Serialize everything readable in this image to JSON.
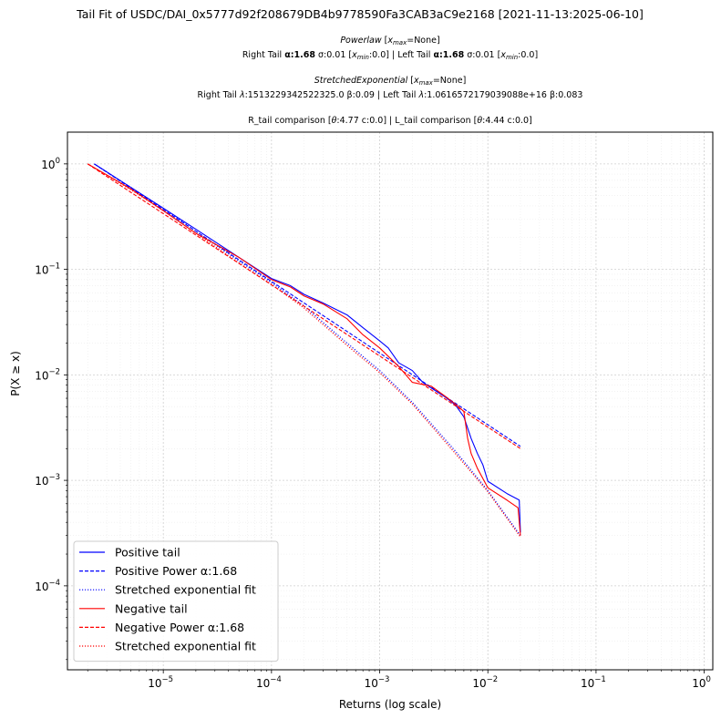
{
  "chart_data": {
    "type": "line",
    "title": "Tail Fit of USDC/DAI_0x5777d92f208679DB4b9778590Fa3CAB3aC9e2168 [2021-11-13:2025-06-10]",
    "subtitle_lines": [
      "Powerlaw [x_max=None]",
      "Right Tail α:1.68 σ:0.01 [x_min:0.0] | Left Tail α:1.68 σ:0.01 [x_min:0.0]",
      "StretchedExponential [x_max=None]",
      "Right Tail λ:1513229342522325.0 β:0.09 | Left Tail λ:1.0616572179039088e+16 β:0.083",
      "R_tail comparison [θ:4.77 c:0.0] | L_tail comparison [θ:4.44 c:0.0]"
    ],
    "xlabel": "Returns (log scale)",
    "ylabel": "P(X ≥ x)",
    "xscale": "log",
    "yscale": "log",
    "xlim": [
      1.3e-06,
      1.2
    ],
    "ylim": [
      1.6e-05,
      2.0
    ],
    "x_ticks": [
      {
        "base": "10",
        "exp": "−5",
        "value": 1e-05
      },
      {
        "base": "10",
        "exp": "−4",
        "value": 0.0001
      },
      {
        "base": "10",
        "exp": "−3",
        "value": 0.001
      },
      {
        "base": "10",
        "exp": "−2",
        "value": 0.01
      },
      {
        "base": "10",
        "exp": "−1",
        "value": 0.1
      },
      {
        "base": "10",
        "exp": "0",
        "value": 1
      }
    ],
    "y_ticks": [
      {
        "base": "10",
        "exp": "−4",
        "value": 0.0001
      },
      {
        "base": "10",
        "exp": "−3",
        "value": 0.001
      },
      {
        "base": "10",
        "exp": "−2",
        "value": 0.01
      },
      {
        "base": "10",
        "exp": "−1",
        "value": 0.1
      },
      {
        "base": "10",
        "exp": "0",
        "value": 1
      }
    ],
    "grid": true,
    "legend_position": "lower-left",
    "series": [
      {
        "name": "Positive tail",
        "color": "#0000ff",
        "dash": "solid",
        "x": [
          2.3e-06,
          5e-06,
          1e-05,
          2e-05,
          5e-05,
          0.0001,
          0.00015,
          0.0002,
          0.0003,
          0.0005,
          0.0007,
          0.001,
          0.0012,
          0.0015,
          0.002,
          0.0025,
          0.003,
          0.004,
          0.005,
          0.006,
          0.007,
          0.008,
          0.009,
          0.01,
          0.015,
          0.0195,
          0.02
        ],
        "y": [
          1.0,
          0.6,
          0.38,
          0.24,
          0.13,
          0.082,
          0.07,
          0.058,
          0.048,
          0.037,
          0.028,
          0.021,
          0.018,
          0.013,
          0.011,
          0.0085,
          0.0075,
          0.0062,
          0.0052,
          0.004,
          0.0025,
          0.0018,
          0.0014,
          0.00098,
          0.00075,
          0.00065,
          0.00032
        ]
      },
      {
        "name": "Positive Power α:1.68",
        "color": "#0000ff",
        "dash": "dashed",
        "x": [
          2.3e-06,
          0.02
        ],
        "y": [
          1.0,
          0.0021
        ]
      },
      {
        "name": "Stretched exponential fit",
        "color": "#0000ff",
        "dash": "dotted",
        "x": [
          2.3e-06,
          5e-06,
          1e-05,
          2e-05,
          5e-05,
          0.0001,
          0.0002,
          0.0005,
          0.001,
          0.002,
          0.005,
          0.01,
          0.02
        ],
        "y": [
          1.0,
          0.6,
          0.38,
          0.23,
          0.12,
          0.075,
          0.045,
          0.02,
          0.011,
          0.0055,
          0.0019,
          0.0008,
          0.0003
        ]
      },
      {
        "name": "Negative tail",
        "color": "#ff0000",
        "dash": "solid",
        "x": [
          2e-06,
          5e-06,
          1e-05,
          2e-05,
          5e-05,
          0.0001,
          0.00015,
          0.0002,
          0.0003,
          0.0005,
          0.0007,
          0.001,
          0.0015,
          0.002,
          0.003,
          0.004,
          0.005,
          0.006,
          0.0065,
          0.007,
          0.008,
          0.01,
          0.015,
          0.019,
          0.02
        ],
        "y": [
          1.0,
          0.58,
          0.36,
          0.22,
          0.13,
          0.08,
          0.068,
          0.056,
          0.047,
          0.034,
          0.024,
          0.018,
          0.012,
          0.0085,
          0.0078,
          0.0063,
          0.0053,
          0.0045,
          0.0025,
          0.0018,
          0.0013,
          0.00085,
          0.00065,
          0.00055,
          0.0003
        ]
      },
      {
        "name": "Negative Power α:1.68",
        "color": "#ff0000",
        "dash": "dashed",
        "x": [
          2e-06,
          0.02
        ],
        "y": [
          1.0,
          0.002
        ]
      },
      {
        "name": "Stretched exponential fit",
        "color": "#ff0000",
        "dash": "dotted",
        "x": [
          2e-06,
          5e-06,
          1e-05,
          2e-05,
          5e-05,
          0.0001,
          0.0002,
          0.0005,
          0.001,
          0.002,
          0.005,
          0.01,
          0.02
        ],
        "y": [
          1.0,
          0.57,
          0.36,
          0.22,
          0.115,
          0.072,
          0.043,
          0.019,
          0.0105,
          0.0053,
          0.0018,
          0.00078,
          0.00029
        ]
      }
    ]
  }
}
